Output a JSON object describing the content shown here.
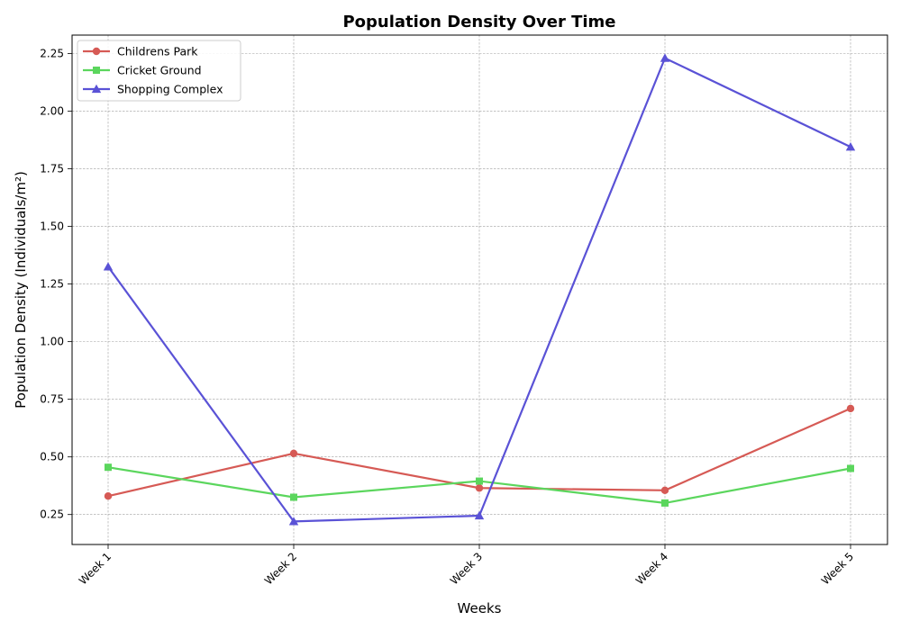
{
  "chart_data": {
    "type": "line",
    "title": "Population Density Over Time",
    "xlabel": "Weeks",
    "ylabel": "Population Density (Individuals/m²)",
    "categories": [
      "Week 1",
      "Week 2",
      "Week 3",
      "Week 4",
      "Week 5"
    ],
    "ylim": [
      0.12,
      2.33
    ],
    "yticks": [
      0.25,
      0.5,
      0.75,
      1.0,
      1.25,
      1.5,
      1.75,
      2.0,
      2.25
    ],
    "ytick_labels": [
      "0.25",
      "0.50",
      "0.75",
      "1.00",
      "1.25",
      "1.50",
      "1.75",
      "2.00",
      "2.25"
    ],
    "grid": true,
    "legend_position": "top-left",
    "series": [
      {
        "name": "Childrens Park",
        "color": "#d65a55",
        "marker": "circle",
        "values": [
          0.33,
          0.515,
          0.365,
          0.355,
          0.71
        ]
      },
      {
        "name": "Cricket Ground",
        "color": "#5bd65d",
        "marker": "square",
        "values": [
          0.455,
          0.325,
          0.395,
          0.3,
          0.45
        ]
      },
      {
        "name": "Shopping Complex",
        "color": "#5a52d6",
        "marker": "triangle",
        "values": [
          1.325,
          0.22,
          0.245,
          2.23,
          1.845
        ]
      }
    ]
  }
}
